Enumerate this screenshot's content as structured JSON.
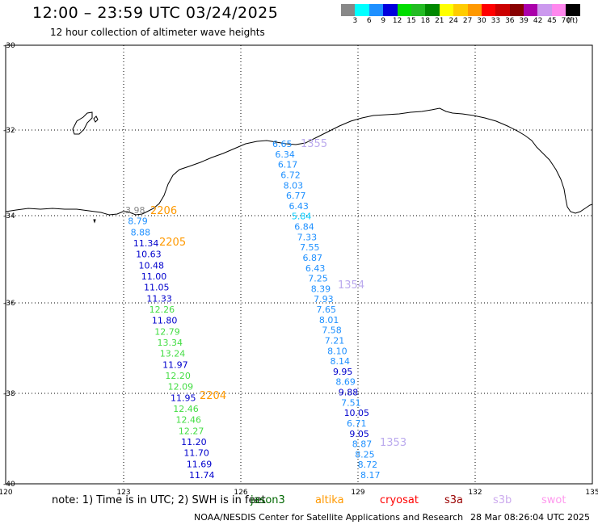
{
  "header": {
    "title": "12:00 – 23:59 UTC 03/24/2025",
    "subtitle": "12 hour collection of altimeter wave heights"
  },
  "legend": {
    "unit": "(ft)",
    "colors": [
      "#888888",
      "#00ffff",
      "#1e90ff",
      "#0000dd",
      "#00dd00",
      "#22bb22",
      "#008800",
      "#ffff00",
      "#ffcc00",
      "#ff9900",
      "#ff0000",
      "#cc0000",
      "#880000",
      "#aa00aa",
      "#cc99ee",
      "#ff88ee",
      "#000000"
    ],
    "labels": [
      "3",
      "6",
      "9",
      "12",
      "15",
      "18",
      "21",
      "24",
      "27",
      "30",
      "33",
      "36",
      "39",
      "42",
      "45",
      "70"
    ]
  },
  "axes": {
    "lon_ticks": [
      "120",
      "123",
      "126",
      "129",
      "132",
      "135"
    ],
    "lat_ticks": [
      "-30",
      "-32",
      "-34",
      "-36",
      "-38",
      "-40"
    ]
  },
  "track_east": {
    "points": [
      {
        "v": "6.65",
        "c": "#1e90ff"
      },
      {
        "v": "6.34",
        "c": "#1e90ff"
      },
      {
        "v": "6.17",
        "c": "#1e90ff"
      },
      {
        "v": "6.72",
        "c": "#1e90ff"
      },
      {
        "v": "8.03",
        "c": "#1e90ff"
      },
      {
        "v": "6.77",
        "c": "#1e90ff"
      },
      {
        "v": "6.43",
        "c": "#1e90ff"
      },
      {
        "v": "5.84",
        "c": "#00ccff"
      },
      {
        "v": "6.84",
        "c": "#1e90ff"
      },
      {
        "v": "7.33",
        "c": "#1e90ff"
      },
      {
        "v": "7.55",
        "c": "#1e90ff"
      },
      {
        "v": "6.87",
        "c": "#1e90ff"
      },
      {
        "v": "6.43",
        "c": "#1e90ff"
      },
      {
        "v": "7.25",
        "c": "#1e90ff"
      },
      {
        "v": "8.39",
        "c": "#1e90ff"
      },
      {
        "v": "7.93",
        "c": "#1e90ff"
      },
      {
        "v": "7.65",
        "c": "#1e90ff"
      },
      {
        "v": "8.01",
        "c": "#1e90ff"
      },
      {
        "v": "7.58",
        "c": "#1e90ff"
      },
      {
        "v": "7.21",
        "c": "#1e90ff"
      },
      {
        "v": "8.10",
        "c": "#1e90ff"
      },
      {
        "v": "8.14",
        "c": "#1e90ff"
      },
      {
        "v": "9.95",
        "c": "#0000cc"
      },
      {
        "v": "8.69",
        "c": "#1e90ff"
      },
      {
        "v": "9.88",
        "c": "#0000cc"
      },
      {
        "v": "7.51",
        "c": "#1e90ff"
      },
      {
        "v": "10.05",
        "c": "#0000cc"
      },
      {
        "v": "6.71",
        "c": "#1e90ff"
      },
      {
        "v": "9.05",
        "c": "#0000cc"
      },
      {
        "v": "8.87",
        "c": "#1e90ff"
      },
      {
        "v": "8.25",
        "c": "#1e90ff"
      },
      {
        "v": "8.72",
        "c": "#1e90ff"
      },
      {
        "v": "8.17",
        "c": "#1e90ff"
      }
    ],
    "times": [
      {
        "t": "1355",
        "c": "#bbaaee"
      },
      {
        "t": "1354",
        "c": "#bbaaee"
      },
      {
        "t": "1353",
        "c": "#bbaaee"
      }
    ]
  },
  "track_west": {
    "points": [
      {
        "v": "3.98",
        "c": "#888888"
      },
      {
        "v": "8.79",
        "c": "#1e90ff"
      },
      {
        "v": "8.88",
        "c": "#1e90ff"
      },
      {
        "v": "11.34",
        "c": "#0000cc"
      },
      {
        "v": "10.63",
        "c": "#0000cc"
      },
      {
        "v": "10.48",
        "c": "#0000cc"
      },
      {
        "v": "11.00",
        "c": "#0000cc"
      },
      {
        "v": "11.05",
        "c": "#0000cc"
      },
      {
        "v": "11.33",
        "c": "#0000cc"
      },
      {
        "v": "12.26",
        "c": "#44dd44"
      },
      {
        "v": "11.80",
        "c": "#0000cc"
      },
      {
        "v": "12.79",
        "c": "#44dd44"
      },
      {
        "v": "13.34",
        "c": "#44dd44"
      },
      {
        "v": "13.24",
        "c": "#44dd44"
      },
      {
        "v": "11.97",
        "c": "#0000cc"
      },
      {
        "v": "12.20",
        "c": "#44dd44"
      },
      {
        "v": "12.09",
        "c": "#44dd44"
      },
      {
        "v": "11.95",
        "c": "#0000cc"
      },
      {
        "v": "12.46",
        "c": "#44dd44"
      },
      {
        "v": "12.46",
        "c": "#44dd44"
      },
      {
        "v": "12.27",
        "c": "#44dd44"
      },
      {
        "v": "11.20",
        "c": "#0000cc"
      },
      {
        "v": "11.70",
        "c": "#0000cc"
      },
      {
        "v": "11.69",
        "c": "#0000cc"
      },
      {
        "v": "11.74",
        "c": "#0000cc"
      }
    ],
    "times": [
      {
        "t": "2206",
        "c": "#ff9900"
      },
      {
        "t": "2205",
        "c": "#ff9900"
      },
      {
        "t": "2204",
        "c": "#ff9900"
      }
    ]
  },
  "footer": {
    "note": "note:  1) Time is in UTC; 2) SWH is in feet",
    "satellites": [
      {
        "name": "jason3",
        "color": "#006600"
      },
      {
        "name": "altika",
        "color": "#ff9900"
      },
      {
        "name": "cryosat",
        "color": "#ff0000"
      },
      {
        "name": "s3a",
        "color": "#990000"
      },
      {
        "name": "s3b",
        "color": "#ccaaee"
      },
      {
        "name": "swot",
        "color": "#ff99ee"
      }
    ],
    "center": "NOAA/NESDIS Center for Satellite Applications and Research",
    "date": "28 Mar 08:26:04 UTC 2025"
  }
}
